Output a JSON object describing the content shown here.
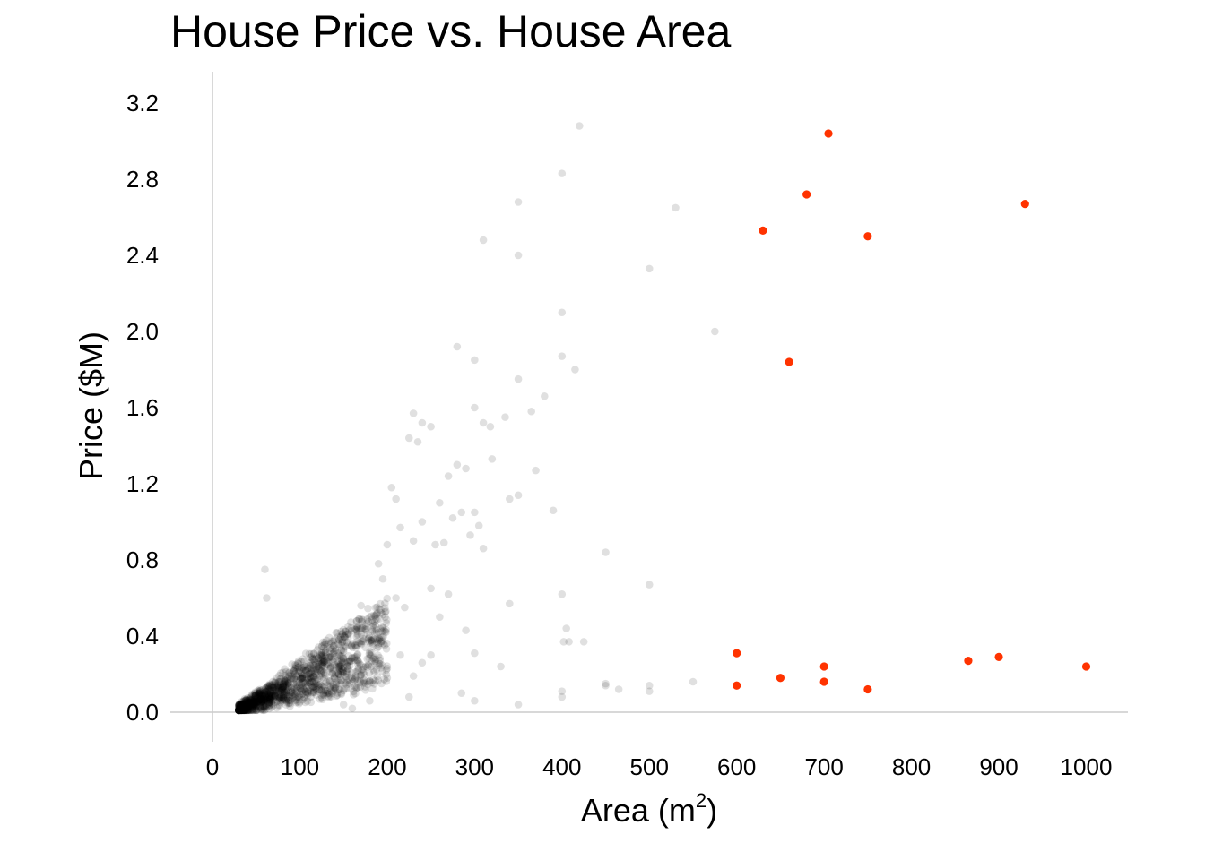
{
  "chart_data": {
    "type": "scatter",
    "title": "House Price vs. House Area",
    "xlabel": "Area (m",
    "xlabel_superscript": "2",
    "xlabel_suffix": ")",
    "ylabel": "Price ($M)",
    "xlim": [
      0,
      1050
    ],
    "ylim": [
      0,
      3.35
    ],
    "x_ticks": [
      0,
      100,
      200,
      300,
      400,
      500,
      600,
      700,
      800,
      900,
      1000
    ],
    "y_ticks": [
      0.0,
      0.4,
      0.8,
      1.2,
      1.6,
      2.0,
      2.4,
      2.8,
      3.2
    ],
    "y_tick_labels": [
      "0.0",
      "0.4",
      "0.8",
      "1.2",
      "1.6",
      "2.0",
      "2.4",
      "2.8",
      "3.2"
    ],
    "grid": false,
    "colors": {
      "main": "#000000",
      "highlight": "#ff3300",
      "axis": "#cccccc"
    },
    "series": [
      {
        "color": "#000000",
        "opacity": 0.12,
        "points": [
          [
            60,
            0.75
          ],
          [
            62,
            0.6
          ],
          [
            420,
            3.08
          ],
          [
            400,
            2.83
          ],
          [
            350,
            2.68
          ],
          [
            530,
            2.65
          ],
          [
            310,
            2.48
          ],
          [
            350,
            2.4
          ],
          [
            500,
            2.33
          ],
          [
            400,
            2.1
          ],
          [
            575,
            2.0
          ],
          [
            280,
            1.92
          ],
          [
            300,
            1.85
          ],
          [
            400,
            1.87
          ],
          [
            415,
            1.8
          ],
          [
            350,
            1.75
          ],
          [
            380,
            1.66
          ],
          [
            365,
            1.58
          ],
          [
            300,
            1.6
          ],
          [
            335,
            1.55
          ],
          [
            310,
            1.52
          ],
          [
            318,
            1.5
          ],
          [
            230,
            1.57
          ],
          [
            240,
            1.52
          ],
          [
            250,
            1.5
          ],
          [
            225,
            1.44
          ],
          [
            235,
            1.42
          ],
          [
            320,
            1.33
          ],
          [
            370,
            1.27
          ],
          [
            340,
            1.12
          ],
          [
            350,
            1.14
          ],
          [
            390,
            1.06
          ],
          [
            450,
            0.84
          ],
          [
            400,
            0.62
          ],
          [
            500,
            0.67
          ],
          [
            405,
            0.44
          ],
          [
            402,
            0.37
          ],
          [
            408,
            0.37
          ],
          [
            425,
            0.37
          ],
          [
            450,
            0.15
          ],
          [
            450,
            0.14
          ],
          [
            465,
            0.12
          ],
          [
            500,
            0.14
          ],
          [
            500,
            0.11
          ],
          [
            550,
            0.16
          ],
          [
            400,
            0.11
          ],
          [
            400,
            0.08
          ],
          [
            350,
            0.04
          ],
          [
            300,
            0.06
          ],
          [
            340,
            0.57
          ],
          [
            300,
            0.31
          ],
          [
            290,
            0.43
          ],
          [
            270,
            0.62
          ],
          [
            250,
            0.65
          ],
          [
            255,
            0.88
          ],
          [
            265,
            0.89
          ],
          [
            275,
            1.02
          ],
          [
            285,
            1.05
          ],
          [
            295,
            0.93
          ],
          [
            305,
            0.98
          ],
          [
            260,
            1.1
          ],
          [
            270,
            1.24
          ],
          [
            280,
            1.3
          ],
          [
            290,
            1.28
          ],
          [
            300,
            1.05
          ],
          [
            310,
            0.86
          ],
          [
            260,
            0.5
          ],
          [
            240,
            0.26
          ],
          [
            225,
            0.08
          ],
          [
            200,
            0.18
          ],
          [
            180,
            0.06
          ],
          [
            160,
            0.02
          ],
          [
            150,
            0.04
          ],
          [
            230,
            0.9
          ],
          [
            240,
            1.0
          ],
          [
            210,
            1.12
          ],
          [
            205,
            1.18
          ],
          [
            215,
            0.97
          ],
          [
            200,
            0.88
          ],
          [
            190,
            0.78
          ],
          [
            195,
            0.7
          ],
          [
            210,
            0.6
          ],
          [
            220,
            0.55
          ],
          [
            180,
            0.5
          ],
          [
            170,
            0.56
          ],
          [
            165,
            0.45
          ],
          [
            190,
            0.42
          ],
          [
            215,
            0.3
          ],
          [
            200,
            0.23
          ],
          [
            230,
            0.19
          ],
          [
            250,
            0.3
          ],
          [
            285,
            0.1
          ],
          [
            330,
            0.24
          ]
        ]
      },
      {
        "color": "#ff3300",
        "opacity": 1.0,
        "points": [
          [
            705,
            3.04
          ],
          [
            680,
            2.72
          ],
          [
            930,
            2.67
          ],
          [
            630,
            2.53
          ],
          [
            750,
            2.5
          ],
          [
            660,
            1.84
          ],
          [
            600,
            0.31
          ],
          [
            600,
            0.14
          ],
          [
            650,
            0.18
          ],
          [
            700,
            0.24
          ],
          [
            700,
            0.16
          ],
          [
            750,
            0.12
          ],
          [
            865,
            0.27
          ],
          [
            900,
            0.29
          ],
          [
            1000,
            0.24
          ]
        ]
      }
    ]
  }
}
